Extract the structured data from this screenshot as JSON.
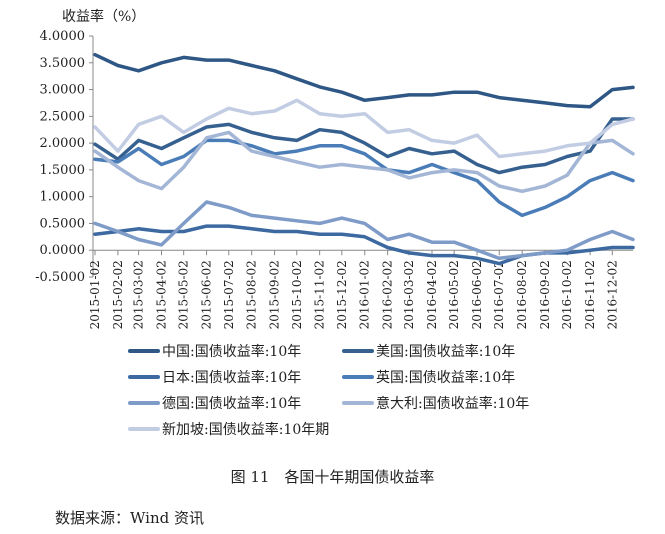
{
  "chart_data": {
    "type": "line",
    "title": "",
    "ylabel": "收益率（%）",
    "ylim": [
      -0.5,
      4.0
    ],
    "yticks": [
      "4.0000",
      "3.5000",
      "3.0000",
      "2.5000",
      "2.0000",
      "1.5000",
      "1.0000",
      "0.5000",
      "0.0000",
      "-0.5000"
    ],
    "xtick_labels": [
      "2015-01-02",
      "2015-02-02",
      "2015-03-02",
      "2015-04-02",
      "2015-05-02",
      "2015-06-02",
      "2015-07-02",
      "2015-08-02",
      "2015-09-02",
      "2015-10-02",
      "2015-11-02",
      "2015-12-02",
      "2016-01-02",
      "2016-02-02",
      "2016-03-02",
      "2016-04-02",
      "2016-05-02",
      "2016-06-02",
      "2016-07-02",
      "2016-08-02",
      "2016-09-02",
      "2016-10-02",
      "2016-11-02",
      "2016-12-02"
    ],
    "x": [
      "2015-01-02",
      "2015-02-02",
      "2015-03-02",
      "2015-04-02",
      "2015-05-02",
      "2015-06-02",
      "2015-07-02",
      "2015-08-02",
      "2015-09-02",
      "2015-10-02",
      "2015-11-02",
      "2015-12-02",
      "2016-01-02",
      "2016-02-02",
      "2016-03-02",
      "2016-04-02",
      "2016-05-02",
      "2016-06-02",
      "2016-07-02",
      "2016-08-02",
      "2016-09-02",
      "2016-10-02",
      "2016-11-02",
      "2016-12-02",
      "2016-12-30"
    ],
    "grid": false,
    "legend_placement": "bottom",
    "series": [
      {
        "name": "中国:国债收益率:10年",
        "color": "#2F5786",
        "values": [
          3.65,
          3.45,
          3.35,
          3.5,
          3.6,
          3.55,
          3.55,
          3.45,
          3.35,
          3.2,
          3.05,
          2.95,
          2.8,
          2.85,
          2.9,
          2.9,
          2.95,
          2.95,
          2.85,
          2.8,
          2.75,
          2.7,
          2.68,
          3.0,
          3.04
        ]
      },
      {
        "name": "美国:国债收益率:10年",
        "color": "#36608F",
        "values": [
          1.98,
          1.7,
          2.05,
          1.9,
          2.1,
          2.3,
          2.35,
          2.2,
          2.1,
          2.05,
          2.25,
          2.2,
          2.0,
          1.75,
          1.9,
          1.8,
          1.85,
          1.6,
          1.45,
          1.55,
          1.6,
          1.75,
          1.85,
          2.45,
          2.45
        ]
      },
      {
        "name": "日本:国债收益率:10年",
        "color": "#3C69A0",
        "values": [
          0.3,
          0.35,
          0.4,
          0.35,
          0.35,
          0.45,
          0.45,
          0.4,
          0.35,
          0.35,
          0.3,
          0.3,
          0.25,
          0.05,
          -0.05,
          -0.1,
          -0.1,
          -0.15,
          -0.25,
          -0.1,
          -0.05,
          -0.05,
          0.0,
          0.05,
          0.05
        ]
      },
      {
        "name": "英国:国债收益率:10年",
        "color": "#4A7DB8",
        "values": [
          1.7,
          1.65,
          1.9,
          1.6,
          1.75,
          2.05,
          2.05,
          1.95,
          1.8,
          1.85,
          1.95,
          1.95,
          1.8,
          1.5,
          1.45,
          1.6,
          1.45,
          1.3,
          0.9,
          0.65,
          0.8,
          1.0,
          1.3,
          1.45,
          1.3
        ]
      },
      {
        "name": "德国:国债收益率:10年",
        "color": "#7F9BC8",
        "values": [
          0.5,
          0.35,
          0.2,
          0.1,
          0.5,
          0.9,
          0.8,
          0.65,
          0.6,
          0.55,
          0.5,
          0.6,
          0.5,
          0.2,
          0.3,
          0.15,
          0.15,
          0.0,
          -0.15,
          -0.1,
          -0.05,
          0.0,
          0.2,
          0.35,
          0.2
        ]
      },
      {
        "name": "意大利:国债收益率:10年",
        "color": "#A4B6D6",
        "values": [
          1.85,
          1.55,
          1.3,
          1.15,
          1.55,
          2.1,
          2.2,
          1.85,
          1.75,
          1.65,
          1.55,
          1.6,
          1.55,
          1.5,
          1.35,
          1.45,
          1.5,
          1.45,
          1.2,
          1.1,
          1.2,
          1.4,
          2.0,
          2.05,
          1.8
        ]
      },
      {
        "name": "新加坡:国债收益率:10年期",
        "color": "#C2CDE3",
        "values": [
          2.3,
          1.85,
          2.35,
          2.5,
          2.2,
          2.45,
          2.65,
          2.55,
          2.6,
          2.8,
          2.55,
          2.5,
          2.55,
          2.2,
          2.25,
          2.05,
          2.0,
          2.15,
          1.75,
          1.8,
          1.85,
          1.95,
          2.0,
          2.35,
          2.45
        ]
      }
    ]
  },
  "caption": "图 11　各国十年期国债收益率",
  "source": "数据来源：Wind 资讯"
}
